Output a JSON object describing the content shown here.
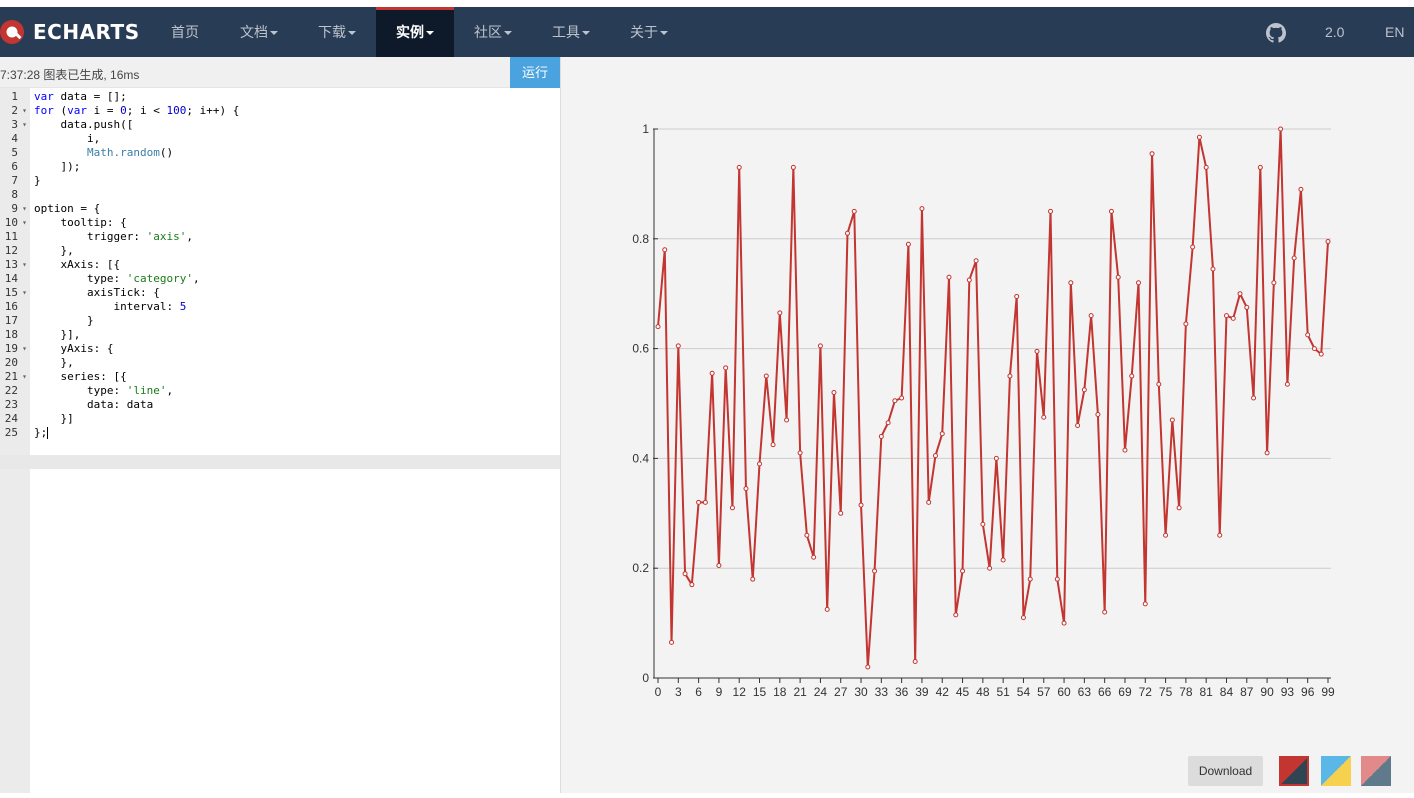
{
  "navbar": {
    "logo_text": "ECHARTS",
    "items": [
      {
        "label": "首页",
        "dropdown": false
      },
      {
        "label": "文档",
        "dropdown": true
      },
      {
        "label": "下载",
        "dropdown": true
      },
      {
        "label": "实例",
        "dropdown": true,
        "active": true
      },
      {
        "label": "社区",
        "dropdown": true
      },
      {
        "label": "工具",
        "dropdown": true
      },
      {
        "label": "关于",
        "dropdown": true
      }
    ],
    "github_icon": "github-icon",
    "version": "2.0",
    "language": "EN"
  },
  "editor": {
    "status": "7:37:28   图表已生成, 16ms",
    "run_label": "运行",
    "lines": [
      "var data = [];",
      "for (var i = 0; i < 100; i++) {",
      "    data.push([",
      "        i,",
      "        Math.random()",
      "    ]);",
      "}",
      "",
      "option = {",
      "    tooltip: {",
      "        trigger: 'axis',",
      "    },",
      "    xAxis: [{",
      "        type: 'category',",
      "        axisTick: {",
      "            interval: 5",
      "        }",
      "    }],",
      "    yAxis: {",
      "    },",
      "    series: [{",
      "        type: 'line',",
      "        data: data",
      "    }]",
      "};"
    ],
    "foldable_lines": [
      2,
      3,
      9,
      10,
      13,
      15,
      19,
      21
    ]
  },
  "chart_data": {
    "type": "line",
    "x": [
      0,
      1,
      2,
      3,
      4,
      5,
      6,
      7,
      8,
      9,
      10,
      11,
      12,
      13,
      14,
      15,
      16,
      17,
      18,
      19,
      20,
      21,
      22,
      23,
      24,
      25,
      26,
      27,
      28,
      29,
      30,
      31,
      32,
      33,
      34,
      35,
      36,
      37,
      38,
      39,
      40,
      41,
      42,
      43,
      44,
      45,
      46,
      47,
      48,
      49,
      50,
      51,
      52,
      53,
      54,
      55,
      56,
      57,
      58,
      59,
      60,
      61,
      62,
      63,
      64,
      65,
      66,
      67,
      68,
      69,
      70,
      71,
      72,
      73,
      74,
      75,
      76,
      77,
      78,
      79,
      80,
      81,
      82,
      83,
      84,
      85,
      86,
      87,
      88,
      89,
      90,
      91,
      92,
      93,
      94,
      95,
      96,
      97,
      98,
      99
    ],
    "x_tick_labels": [
      "0",
      "3",
      "6",
      "9",
      "12",
      "15",
      "18",
      "21",
      "24",
      "27",
      "30",
      "33",
      "36",
      "39",
      "42",
      "45",
      "48",
      "51",
      "54",
      "57",
      "60",
      "63",
      "66",
      "69",
      "72",
      "75",
      "78",
      "81",
      "84",
      "87",
      "90",
      "93",
      "96",
      "99"
    ],
    "series": [
      {
        "values": [
          0.64,
          0.78,
          0.065,
          0.605,
          0.19,
          0.17,
          0.32,
          0.32,
          0.555,
          0.205,
          0.565,
          0.31,
          0.93,
          0.345,
          0.18,
          0.39,
          0.55,
          0.425,
          0.665,
          0.47,
          0.93,
          0.41,
          0.26,
          0.22,
          0.605,
          0.125,
          0.52,
          0.3,
          0.81,
          0.85,
          0.315,
          0.02,
          0.195,
          0.44,
          0.465,
          0.505,
          0.51,
          0.79,
          0.03,
          0.855,
          0.32,
          0.405,
          0.445,
          0.73,
          0.115,
          0.195,
          0.725,
          0.76,
          0.28,
          0.2,
          0.4,
          0.215,
          0.55,
          0.695,
          0.11,
          0.18,
          0.595,
          0.475,
          0.85,
          0.18,
          0.1,
          0.72,
          0.46,
          0.525,
          0.66,
          0.48,
          0.12,
          0.85,
          0.73,
          0.415,
          0.55,
          0.72,
          0.135,
          0.955,
          0.535,
          0.26,
          0.47,
          0.31,
          0.645,
          0.785,
          0.985,
          0.93,
          0.745,
          0.26,
          0.66,
          0.655,
          0.7,
          0.675,
          0.51,
          0.93,
          0.41,
          0.72,
          1.0,
          0.535,
          0.765,
          0.89,
          0.625,
          0.6,
          0.59,
          0.795
        ],
        "color": "#c23531"
      }
    ],
    "y_ticks": [
      "0",
      "0.2",
      "0.4",
      "0.6",
      "0.8",
      "1"
    ],
    "ylim": [
      0,
      1
    ],
    "grid": true
  },
  "toolbox": {
    "download_label": "Download",
    "themes": [
      {
        "colors": [
          "#c23531",
          "#2f4554"
        ],
        "selected": true
      },
      {
        "colors": [
          "#5bb7e8",
          "#f6d14d"
        ],
        "selected": false
      },
      {
        "colors": [
          "#e28a8a",
          "#5f7a8a"
        ],
        "selected": false
      }
    ]
  }
}
